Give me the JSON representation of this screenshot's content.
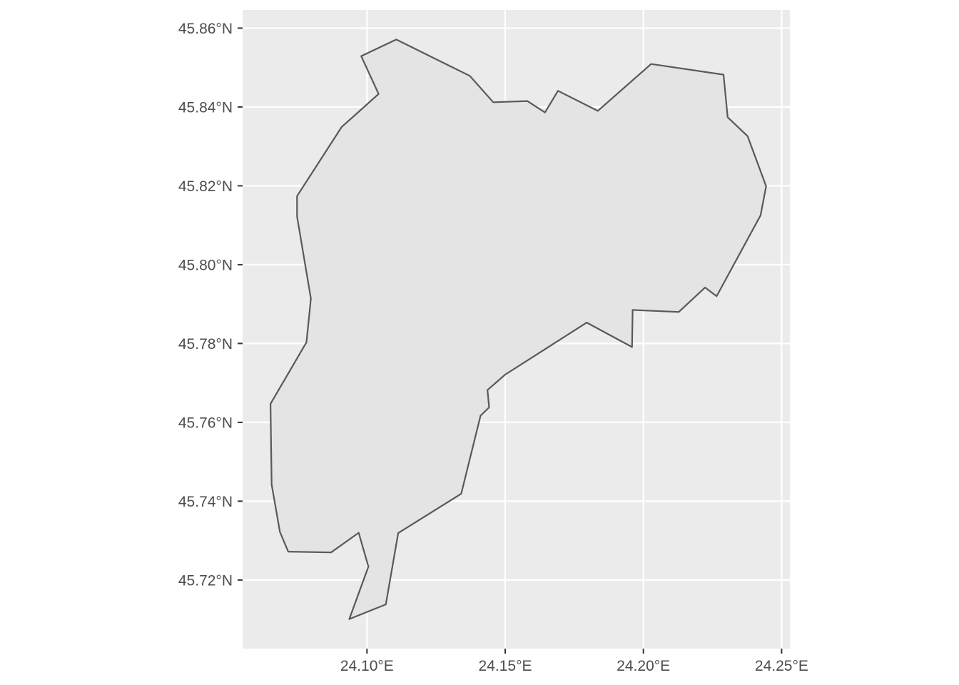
{
  "chart_data": {
    "type": "map",
    "crs_units": "degrees",
    "xlim": [
      24.055,
      24.253
    ],
    "ylim": [
      45.7026,
      45.8646
    ],
    "x_ticks": [
      {
        "value": 24.1,
        "label": "24.10°E"
      },
      {
        "value": 24.15,
        "label": "24.15°E"
      },
      {
        "value": 24.2,
        "label": "24.20°E"
      },
      {
        "value": 24.25,
        "label": "24.25°E"
      }
    ],
    "y_ticks": [
      {
        "value": 45.72,
        "label": "45.72°N"
      },
      {
        "value": 45.74,
        "label": "45.74°N"
      },
      {
        "value": 45.76,
        "label": "45.76°N"
      },
      {
        "value": 45.78,
        "label": "45.78°N"
      },
      {
        "value": 45.8,
        "label": "45.80°N"
      },
      {
        "value": 45.82,
        "label": "45.82°N"
      },
      {
        "value": 45.84,
        "label": "45.84°N"
      },
      {
        "value": 45.86,
        "label": "45.86°N"
      }
    ],
    "polygon": [
      [
        24.0979,
        45.8529
      ],
      [
        24.1106,
        45.8571
      ],
      [
        24.1372,
        45.8479
      ],
      [
        24.1457,
        45.8412
      ],
      [
        24.158,
        45.8415
      ],
      [
        24.1644,
        45.8386
      ],
      [
        24.1691,
        45.8441
      ],
      [
        24.1835,
        45.839
      ],
      [
        24.2028,
        45.8509
      ],
      [
        24.229,
        45.8482
      ],
      [
        24.2305,
        45.8374
      ],
      [
        24.2377,
        45.8326
      ],
      [
        24.2444,
        45.8199
      ],
      [
        24.2424,
        45.8125
      ],
      [
        24.2265,
        45.792
      ],
      [
        24.2223,
        45.7942
      ],
      [
        24.2128,
        45.788
      ],
      [
        24.1961,
        45.7885
      ],
      [
        24.1959,
        45.7791
      ],
      [
        24.1795,
        45.7853
      ],
      [
        24.15,
        45.7721
      ],
      [
        24.1436,
        45.7682
      ],
      [
        24.1442,
        45.7638
      ],
      [
        24.1411,
        45.7617
      ],
      [
        24.1341,
        45.7419
      ],
      [
        24.1113,
        45.7319
      ],
      [
        24.1068,
        45.7138
      ],
      [
        24.0936,
        45.7101
      ],
      [
        24.1005,
        45.7234
      ],
      [
        24.097,
        45.732
      ],
      [
        24.087,
        45.727
      ],
      [
        24.0715,
        45.7272
      ],
      [
        24.0685,
        45.7322
      ],
      [
        24.0655,
        45.7442
      ],
      [
        24.0651,
        45.7647
      ],
      [
        24.0781,
        45.7803
      ],
      [
        24.0797,
        45.7914
      ],
      [
        24.0747,
        45.8122
      ],
      [
        24.0747,
        45.8174
      ],
      [
        24.0908,
        45.8349
      ],
      [
        24.1042,
        45.8433
      ]
    ],
    "fill_color": "#e4e4e4",
    "stroke_color": "#595959",
    "panel_background": "#ebebeb",
    "grid_color": "#ffffff",
    "title": "",
    "xlabel": "",
    "ylabel": ""
  }
}
